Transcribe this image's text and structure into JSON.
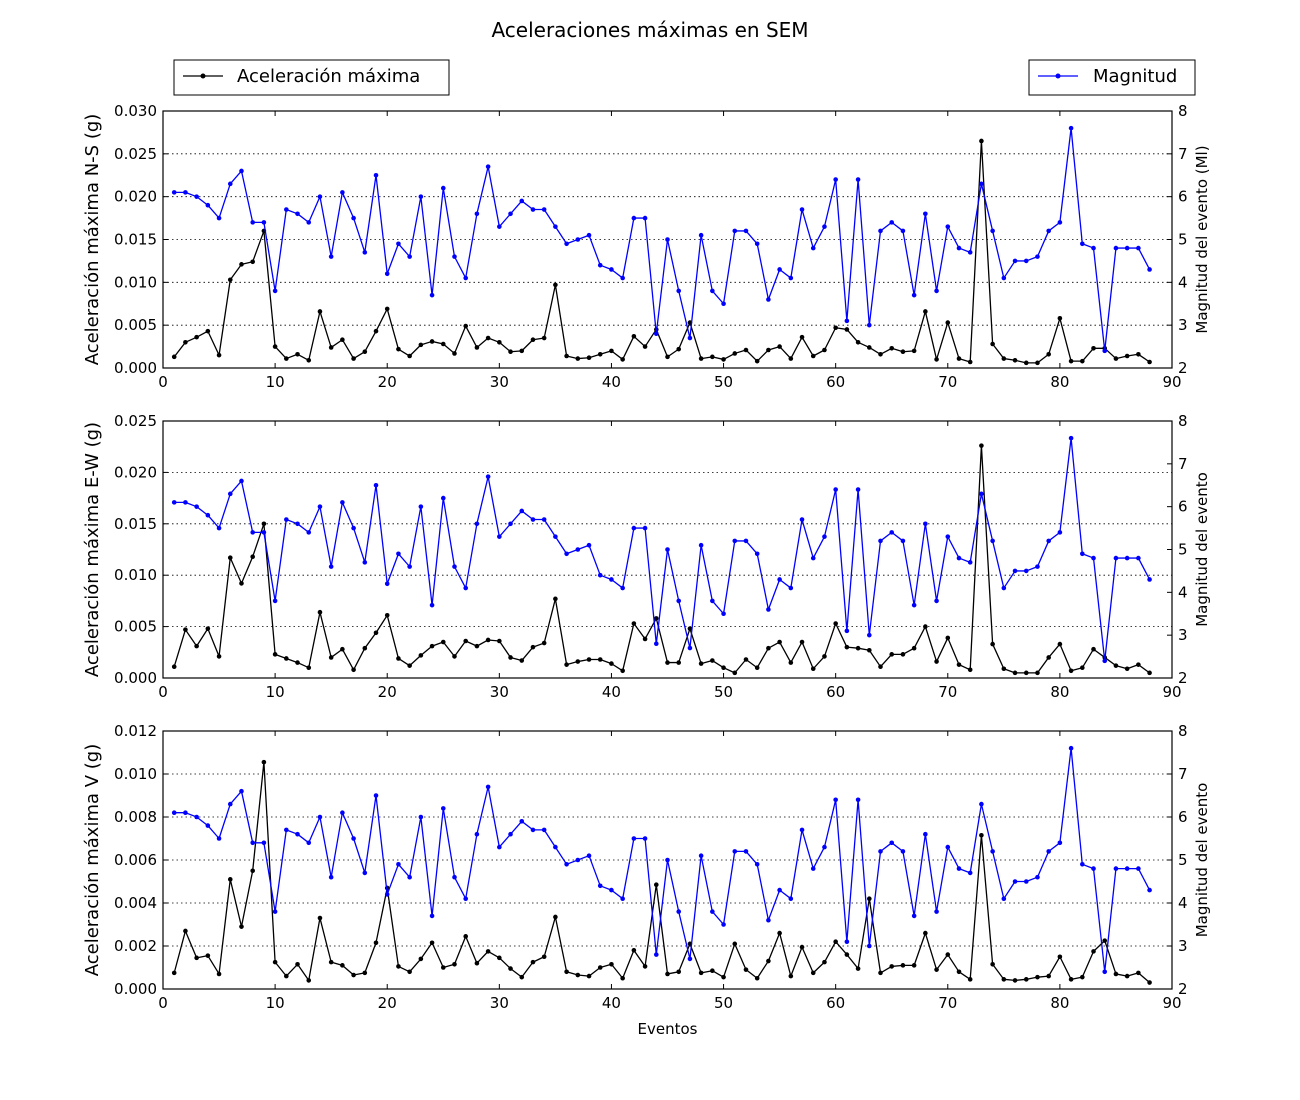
{
  "figure": {
    "title": "Aceleraciones máximas en SEM",
    "xlabel": "Eventos",
    "legend": {
      "accel_label": "Aceleración máxima",
      "mag_label": "Magnitud",
      "accel_placement": "upper-left",
      "mag_placement": "upper-right"
    },
    "colors": {
      "accel": "#000000",
      "mag": "#0000ff",
      "grid": "#000000"
    }
  },
  "chart_data": [
    {
      "type": "line",
      "title": "",
      "xlabel": "",
      "ylabel": "Aceleración máxima N-S (g)",
      "y2label": "Magnitud del evento (Ml)",
      "xlim": [
        0,
        90
      ],
      "ylim": [
        0,
        0.03
      ],
      "y2lim": [
        2,
        8
      ],
      "grid": true,
      "xticks": [
        "0",
        "10",
        "20",
        "30",
        "40",
        "50",
        "60",
        "70",
        "80",
        "90"
      ],
      "yticks": [
        "0.000",
        "0.005",
        "0.010",
        "0.015",
        "0.020",
        "0.025",
        "0.030"
      ],
      "y2ticks": [
        "2",
        "3",
        "4",
        "5",
        "6",
        "7",
        "8"
      ],
      "x": [
        1,
        2,
        3,
        4,
        5,
        6,
        7,
        8,
        9,
        10,
        11,
        12,
        13,
        14,
        15,
        16,
        17,
        18,
        19,
        20,
        21,
        22,
        23,
        24,
        25,
        26,
        27,
        28,
        29,
        30,
        31,
        32,
        33,
        34,
        35,
        36,
        37,
        38,
        39,
        40,
        41,
        42,
        43,
        44,
        45,
        46,
        47,
        48,
        49,
        50,
        51,
        52,
        53,
        54,
        55,
        56,
        57,
        58,
        59,
        60,
        61,
        62,
        63,
        64,
        65,
        66,
        67,
        68,
        69,
        70,
        71,
        72,
        73,
        74,
        75,
        76,
        77,
        78,
        79,
        80,
        81,
        82,
        83,
        84,
        85,
        86,
        87,
        88
      ],
      "series": [
        {
          "name": "Aceleración máxima",
          "axis": "left",
          "values": [
            0.0013,
            0.003,
            0.0036,
            0.0043,
            0.0015,
            0.0103,
            0.0121,
            0.0124,
            0.016,
            0.0025,
            0.0011,
            0.0016,
            0.0009,
            0.0066,
            0.0024,
            0.0033,
            0.0011,
            0.0019,
            0.0043,
            0.0069,
            0.0022,
            0.0014,
            0.0027,
            0.0031,
            0.0028,
            0.0017,
            0.0049,
            0.0024,
            0.0035,
            0.003,
            0.0019,
            0.002,
            0.0033,
            0.0035,
            0.0097,
            0.0014,
            0.0011,
            0.0012,
            0.0016,
            0.002,
            0.001,
            0.0037,
            0.0025,
            0.0045,
            0.0013,
            0.0022,
            0.0053,
            0.0011,
            0.0013,
            0.001,
            0.0017,
            0.0021,
            0.0008,
            0.0021,
            0.0025,
            0.0011,
            0.0036,
            0.0014,
            0.0021,
            0.0047,
            0.0045,
            0.003,
            0.0024,
            0.0016,
            0.0023,
            0.0019,
            0.002,
            0.0066,
            0.001,
            0.0053,
            0.0011,
            0.0007,
            0.0265,
            0.0028,
            0.0011,
            0.0009,
            0.0006,
            0.0006,
            0.0016,
            0.0058,
            0.0008,
            0.0008,
            0.0023,
            0.0023,
            0.0011,
            0.0014,
            0.0016,
            0.0007
          ]
        },
        {
          "name": "Magnitud",
          "axis": "right",
          "values": [
            6.1,
            6.1,
            6.0,
            5.8,
            5.5,
            6.3,
            6.6,
            5.4,
            5.4,
            3.8,
            5.7,
            5.6,
            5.4,
            6.0,
            4.6,
            6.1,
            5.5,
            4.7,
            6.5,
            4.2,
            4.9,
            4.6,
            6.0,
            3.7,
            6.2,
            4.6,
            4.1,
            5.6,
            6.7,
            5.3,
            5.6,
            5.9,
            5.7,
            5.7,
            5.3,
            4.9,
            5.0,
            5.1,
            4.4,
            4.3,
            4.1,
            5.5,
            5.5,
            2.8,
            5.0,
            3.8,
            2.7,
            5.1,
            3.8,
            3.5,
            5.2,
            5.2,
            4.9,
            3.6,
            4.3,
            4.1,
            5.7,
            4.8,
            5.3,
            6.4,
            3.1,
            6.4,
            3.0,
            5.2,
            5.4,
            5.2,
            3.7,
            5.6,
            3.8,
            5.3,
            4.8,
            4.7,
            6.3,
            5.2,
            4.1,
            4.5,
            4.5,
            4.6,
            5.2,
            5.4,
            7.6,
            4.9,
            4.8,
            2.4,
            4.8,
            4.8,
            4.8,
            4.3
          ]
        }
      ]
    },
    {
      "type": "line",
      "title": "",
      "xlabel": "",
      "ylabel": "Aceleración máxima E-W (g)",
      "y2label": "Magnitud del evento",
      "xlim": [
        0,
        90
      ],
      "ylim": [
        0,
        0.025
      ],
      "y2lim": [
        2,
        8
      ],
      "grid": true,
      "xticks": [
        "0",
        "10",
        "20",
        "30",
        "40",
        "50",
        "60",
        "70",
        "80",
        "90"
      ],
      "yticks": [
        "0.000",
        "0.005",
        "0.010",
        "0.015",
        "0.020",
        "0.025"
      ],
      "y2ticks": [
        "2",
        "3",
        "4",
        "5",
        "6",
        "7",
        "8"
      ],
      "x": [
        1,
        2,
        3,
        4,
        5,
        6,
        7,
        8,
        9,
        10,
        11,
        12,
        13,
        14,
        15,
        16,
        17,
        18,
        19,
        20,
        21,
        22,
        23,
        24,
        25,
        26,
        27,
        28,
        29,
        30,
        31,
        32,
        33,
        34,
        35,
        36,
        37,
        38,
        39,
        40,
        41,
        42,
        43,
        44,
        45,
        46,
        47,
        48,
        49,
        50,
        51,
        52,
        53,
        54,
        55,
        56,
        57,
        58,
        59,
        60,
        61,
        62,
        63,
        64,
        65,
        66,
        67,
        68,
        69,
        70,
        71,
        72,
        73,
        74,
        75,
        76,
        77,
        78,
        79,
        80,
        81,
        82,
        83,
        84,
        85,
        86,
        87,
        88
      ],
      "series": [
        {
          "name": "Aceleración máxima",
          "axis": "left",
          "values": [
            0.0011,
            0.0047,
            0.0031,
            0.0048,
            0.0021,
            0.0117,
            0.0092,
            0.0118,
            0.015,
            0.0023,
            0.0019,
            0.0015,
            0.001,
            0.0064,
            0.002,
            0.0028,
            0.0008,
            0.0029,
            0.0044,
            0.0061,
            0.0019,
            0.0012,
            0.0022,
            0.0031,
            0.0035,
            0.0021,
            0.0036,
            0.0031,
            0.0037,
            0.0036,
            0.002,
            0.0017,
            0.003,
            0.0034,
            0.0077,
            0.0013,
            0.0016,
            0.0018,
            0.0018,
            0.0014,
            0.0007,
            0.0053,
            0.0038,
            0.0058,
            0.0015,
            0.0015,
            0.0048,
            0.0014,
            0.0017,
            0.001,
            0.0005,
            0.0018,
            0.001,
            0.0029,
            0.0035,
            0.0015,
            0.0035,
            0.0009,
            0.0021,
            0.0053,
            0.003,
            0.0029,
            0.0027,
            0.0011,
            0.0023,
            0.0023,
            0.0029,
            0.005,
            0.0016,
            0.0039,
            0.0013,
            0.0008,
            0.0226,
            0.0033,
            0.0009,
            0.0005,
            0.0005,
            0.0005,
            0.002,
            0.0033,
            0.0007,
            0.001,
            0.0028,
            0.002,
            0.0012,
            0.0009,
            0.0013,
            0.0005
          ]
        },
        {
          "name": "Magnitud",
          "axis": "right",
          "values": [
            6.1,
            6.1,
            6.0,
            5.8,
            5.5,
            6.3,
            6.6,
            5.4,
            5.4,
            3.8,
            5.7,
            5.6,
            5.4,
            6.0,
            4.6,
            6.1,
            5.5,
            4.7,
            6.5,
            4.2,
            4.9,
            4.6,
            6.0,
            3.7,
            6.2,
            4.6,
            4.1,
            5.6,
            6.7,
            5.3,
            5.6,
            5.9,
            5.7,
            5.7,
            5.3,
            4.9,
            5.0,
            5.1,
            4.4,
            4.3,
            4.1,
            5.5,
            5.5,
            2.8,
            5.0,
            3.8,
            2.7,
            5.1,
            3.8,
            3.5,
            5.2,
            5.2,
            4.9,
            3.6,
            4.3,
            4.1,
            5.7,
            4.8,
            5.3,
            6.4,
            3.1,
            6.4,
            3.0,
            5.2,
            5.4,
            5.2,
            3.7,
            5.6,
            3.8,
            5.3,
            4.8,
            4.7,
            6.3,
            5.2,
            4.1,
            4.5,
            4.5,
            4.6,
            5.2,
            5.4,
            7.6,
            4.9,
            4.8,
            2.4,
            4.8,
            4.8,
            4.8,
            4.3
          ]
        }
      ]
    },
    {
      "type": "line",
      "title": "",
      "xlabel": "Eventos",
      "ylabel": "Aceleración máxima V (g)",
      "y2label": "Magnitud del evento",
      "xlim": [
        0,
        90
      ],
      "ylim": [
        0,
        0.012
      ],
      "y2lim": [
        2,
        8
      ],
      "grid": true,
      "xticks": [
        "0",
        "10",
        "20",
        "30",
        "40",
        "50",
        "60",
        "70",
        "80",
        "90"
      ],
      "yticks": [
        "0.000",
        "0.002",
        "0.004",
        "0.006",
        "0.008",
        "0.010",
        "0.012"
      ],
      "y2ticks": [
        "2",
        "3",
        "4",
        "5",
        "6",
        "7",
        "8"
      ],
      "x": [
        1,
        2,
        3,
        4,
        5,
        6,
        7,
        8,
        9,
        10,
        11,
        12,
        13,
        14,
        15,
        16,
        17,
        18,
        19,
        20,
        21,
        22,
        23,
        24,
        25,
        26,
        27,
        28,
        29,
        30,
        31,
        32,
        33,
        34,
        35,
        36,
        37,
        38,
        39,
        40,
        41,
        42,
        43,
        44,
        45,
        46,
        47,
        48,
        49,
        50,
        51,
        52,
        53,
        54,
        55,
        56,
        57,
        58,
        59,
        60,
        61,
        62,
        63,
        64,
        65,
        66,
        67,
        68,
        69,
        70,
        71,
        72,
        73,
        74,
        75,
        76,
        77,
        78,
        79,
        80,
        81,
        82,
        83,
        84,
        85,
        86,
        87,
        88
      ],
      "series": [
        {
          "name": "Aceleración máxima",
          "axis": "left",
          "values": [
            0.00075,
            0.0027,
            0.00145,
            0.00155,
            0.0007,
            0.0051,
            0.0029,
            0.0055,
            0.01055,
            0.00125,
            0.0006,
            0.00115,
            0.0004,
            0.0033,
            0.00125,
            0.0011,
            0.00065,
            0.00075,
            0.00215,
            0.0047,
            0.00105,
            0.0008,
            0.0014,
            0.00215,
            0.001,
            0.00115,
            0.00245,
            0.0012,
            0.00175,
            0.00145,
            0.00095,
            0.00055,
            0.00125,
            0.0015,
            0.00335,
            0.0008,
            0.00065,
            0.0006,
            0.001,
            0.00115,
            0.0005,
            0.0018,
            0.00105,
            0.00485,
            0.0007,
            0.0008,
            0.0021,
            0.00075,
            0.00085,
            0.00055,
            0.0021,
            0.0009,
            0.0005,
            0.0013,
            0.0026,
            0.0006,
            0.00195,
            0.00075,
            0.00125,
            0.0022,
            0.0016,
            0.00095,
            0.0042,
            0.00075,
            0.00105,
            0.0011,
            0.0011,
            0.0026,
            0.0009,
            0.0016,
            0.0008,
            0.00045,
            0.00715,
            0.00115,
            0.00045,
            0.0004,
            0.00045,
            0.00055,
            0.0006,
            0.0015,
            0.00045,
            0.00055,
            0.00175,
            0.00225,
            0.0007,
            0.0006,
            0.00075,
            0.0003
          ]
        },
        {
          "name": "Magnitud",
          "axis": "right",
          "values": [
            6.1,
            6.1,
            6.0,
            5.8,
            5.5,
            6.3,
            6.6,
            5.4,
            5.4,
            3.8,
            5.7,
            5.6,
            5.4,
            6.0,
            4.6,
            6.1,
            5.5,
            4.7,
            6.5,
            4.2,
            4.9,
            4.6,
            6.0,
            3.7,
            6.2,
            4.6,
            4.1,
            5.6,
            6.7,
            5.3,
            5.6,
            5.9,
            5.7,
            5.7,
            5.3,
            4.9,
            5.0,
            5.1,
            4.4,
            4.3,
            4.1,
            5.5,
            5.5,
            2.8,
            5.0,
            3.8,
            2.7,
            5.1,
            3.8,
            3.5,
            5.2,
            5.2,
            4.9,
            3.6,
            4.3,
            4.1,
            5.7,
            4.8,
            5.3,
            6.4,
            3.1,
            6.4,
            3.0,
            5.2,
            5.4,
            5.2,
            3.7,
            5.6,
            3.8,
            5.3,
            4.8,
            4.7,
            6.3,
            5.2,
            4.1,
            4.5,
            4.5,
            4.6,
            5.2,
            5.4,
            7.6,
            4.9,
            4.8,
            2.4,
            4.8,
            4.8,
            4.8,
            4.3
          ]
        }
      ]
    }
  ]
}
